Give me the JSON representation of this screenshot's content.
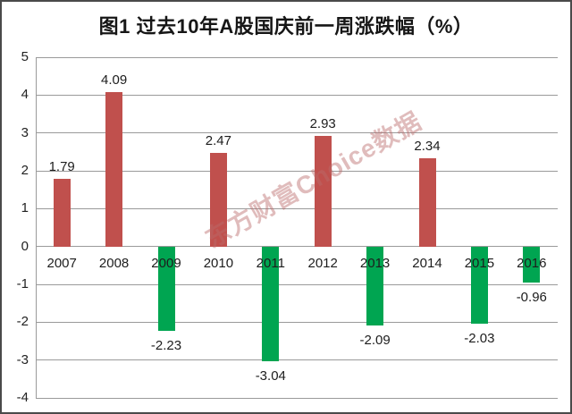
{
  "page": {
    "background": "#ffffff",
    "border_color": "#4a4a4a"
  },
  "title": "图1 过去10年A股国庆前一周涨跌幅（%）",
  "watermark": {
    "text": "东方财富Choice数据",
    "color": "rgba(186,106,106,0.45)"
  },
  "chart_data": {
    "type": "bar",
    "title": "图1 过去10年A股国庆前一周涨跌幅（%）",
    "categories": [
      "2007",
      "2008",
      "2009",
      "2010",
      "2011",
      "2012",
      "2013",
      "2014",
      "2015",
      "2016"
    ],
    "values": [
      1.79,
      4.09,
      -2.23,
      2.47,
      -3.04,
      2.93,
      -2.09,
      2.34,
      -2.03,
      -0.96
    ],
    "data_labels": [
      "1.79",
      "4.09",
      "-2.23",
      "2.47",
      "-3.04",
      "2.93",
      "-2.09",
      "2.34",
      "-2.03",
      "-0.96"
    ],
    "xlabel": "",
    "ylabel": "",
    "ylim": [
      -4,
      5
    ],
    "ytick_step": 1,
    "yticks": [
      "5",
      "4",
      "3",
      "2",
      "1",
      "0",
      "-1",
      "-2",
      "-3",
      "-4"
    ],
    "grid": true,
    "legend": "none",
    "positive_color": "#c0504d",
    "negative_color": "#00a551",
    "grid_color": "#9a9a9a",
    "label_color": "#1d1d1d",
    "x_labels_position": "below-zero-line"
  }
}
